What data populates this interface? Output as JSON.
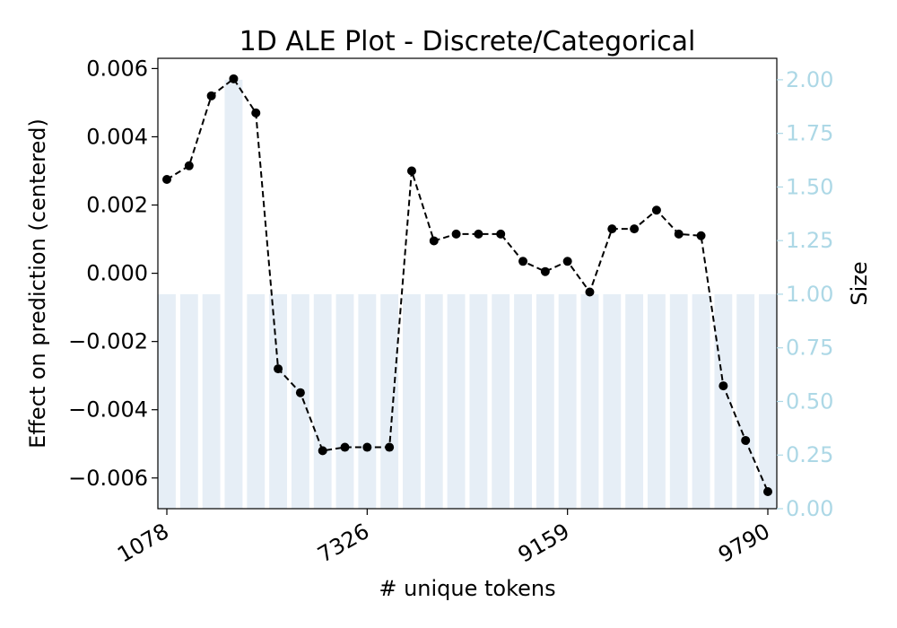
{
  "chart_data": {
    "type": "line",
    "title": "1D ALE Plot - Discrete/Categorical",
    "xlabel": "# unique tokens",
    "ylabel": "Effect on prediction (centered)",
    "y2label": "Size",
    "x_tick_labels": [
      "1078",
      "7326",
      "9159",
      "9790"
    ],
    "x_tick_indices": [
      0,
      9,
      18,
      27
    ],
    "y_ticks": [
      "0.006",
      "0.004",
      "0.002",
      "0.000",
      "−0.002",
      "−0.004",
      "−0.006"
    ],
    "y_tick_values": [
      0.006,
      0.004,
      0.002,
      0.0,
      -0.002,
      -0.004,
      -0.006
    ],
    "y2_ticks": [
      "2.00",
      "1.75",
      "1.50",
      "1.25",
      "1.00",
      "0.75",
      "0.50",
      "0.25",
      "0.00"
    ],
    "y2_tick_values": [
      2.0,
      1.75,
      1.5,
      1.25,
      1.0,
      0.75,
      0.5,
      0.25,
      0.0
    ],
    "ylim": [
      -0.0069,
      0.0063
    ],
    "y2lim": [
      0,
      2.1
    ],
    "series": [
      {
        "name": "",
        "style": "dashed-line-with-markers",
        "color": "#000000",
        "values": [
          0.00275,
          0.00315,
          0.0052,
          0.0057,
          0.0047,
          -0.0028,
          -0.0035,
          -0.0052,
          -0.0051,
          -0.0051,
          -0.0051,
          0.003,
          0.00095,
          0.00115,
          0.00115,
          0.00115,
          0.00035,
          5e-05,
          0.00035,
          -0.00055,
          0.0013,
          0.0013,
          0.00185,
          0.00115,
          0.0011,
          -0.0033,
          -0.0049,
          -0.0064
        ]
      }
    ],
    "size_bars": {
      "color": "#e6eef6",
      "values": [
        1,
        1,
        1,
        2,
        1,
        1,
        1,
        1,
        1,
        1,
        1,
        1,
        1,
        1,
        1,
        1,
        1,
        1,
        1,
        1,
        1,
        1,
        1,
        1,
        1,
        1,
        1,
        1
      ]
    },
    "right_axis_color": "#add8e6",
    "grid": false,
    "legend": "none"
  }
}
